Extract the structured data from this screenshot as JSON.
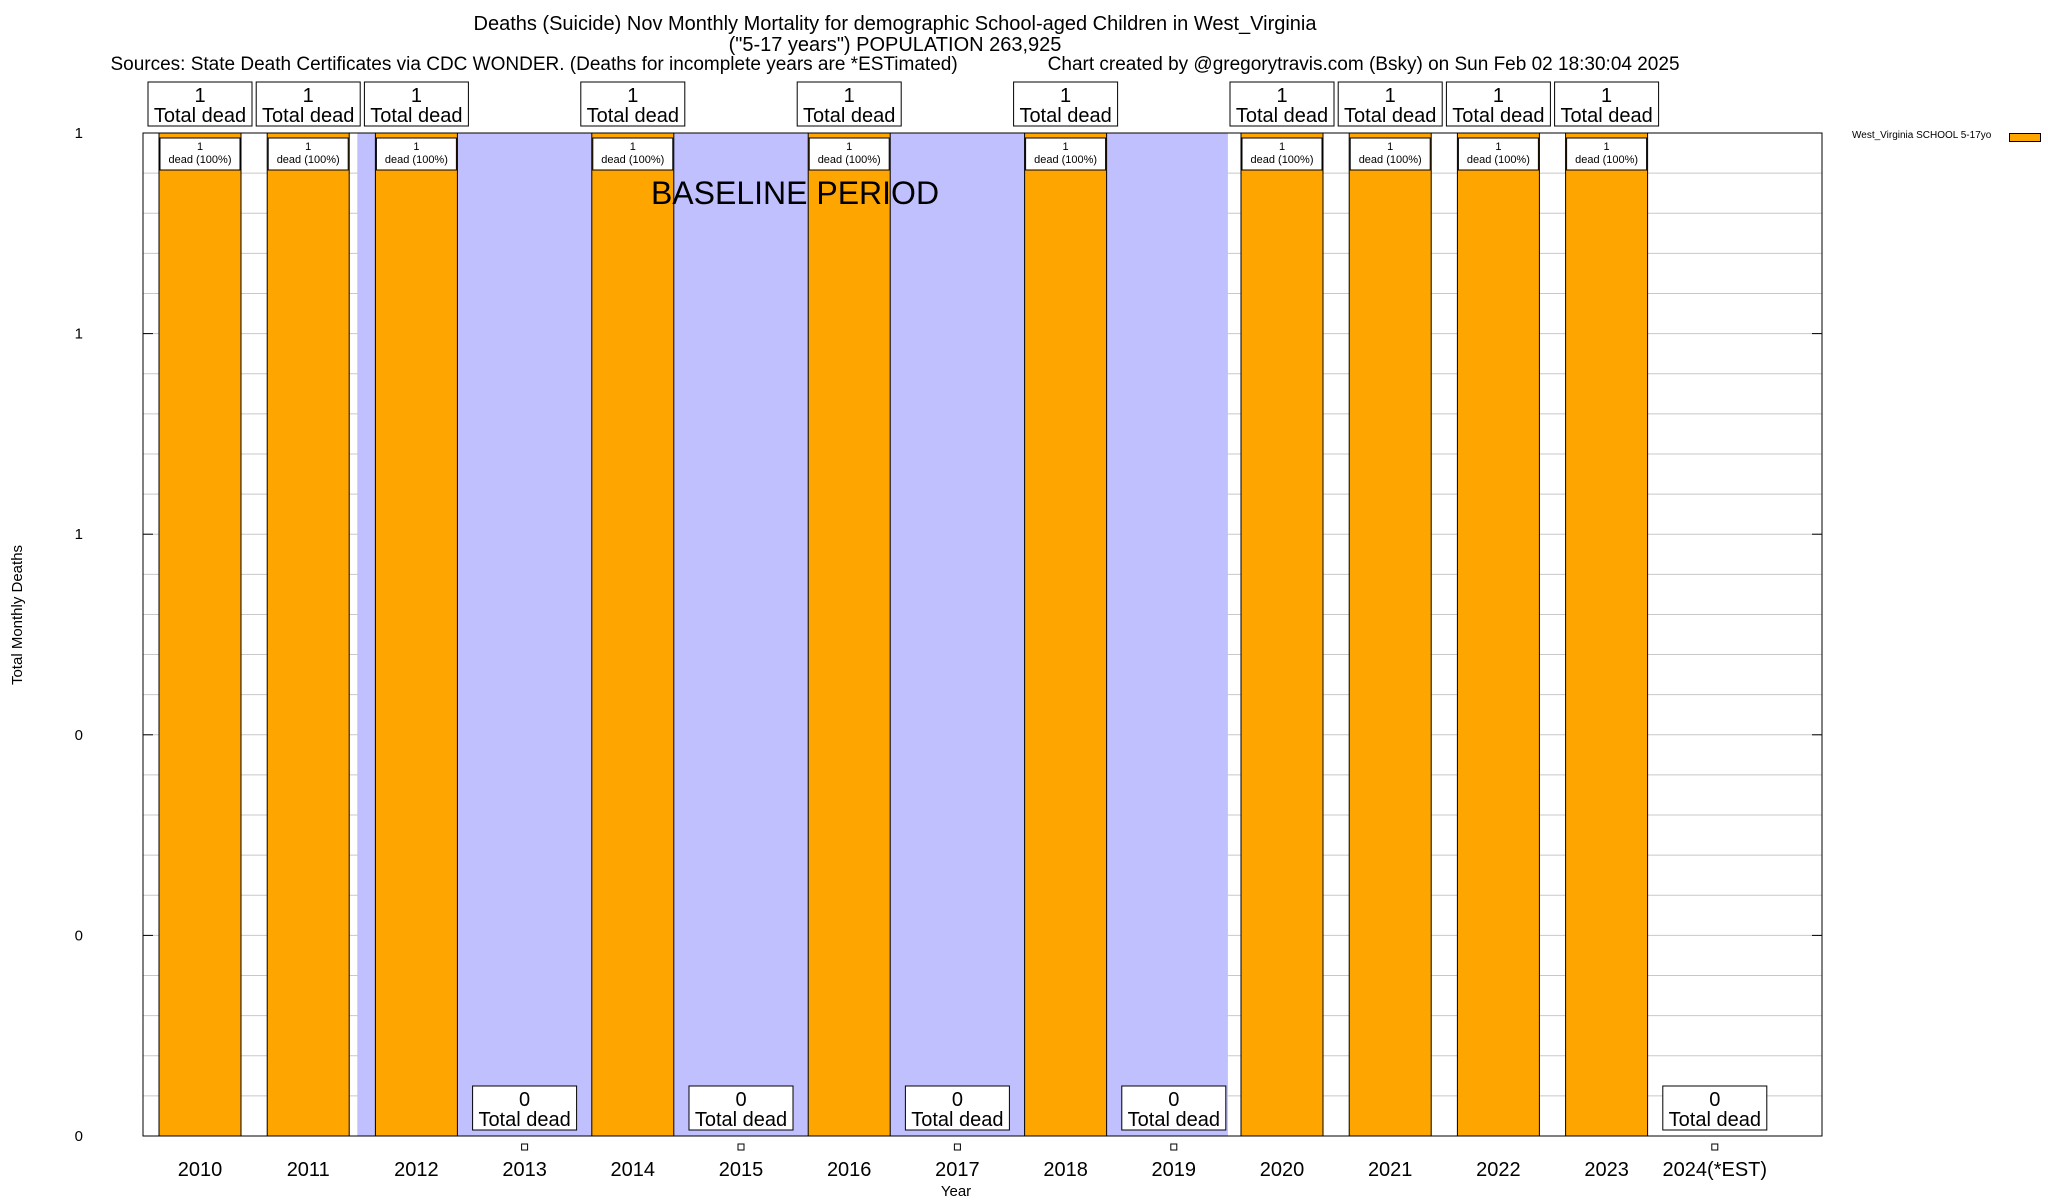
{
  "chart_data": {
    "type": "bar",
    "title": "Deaths (Suicide) Nov Monthly Mortality for demographic School-aged Children in West_Virginia",
    "subtitle": "(\"5-17 years\") POPULATION 263,925",
    "sources": "Sources: State Death Certificates via CDC WONDER. (Deaths for incomplete years are *ESTimated)",
    "credit": "Chart created by @gregorytravis.com (Bsky) on Sun Feb 02 18:30:04 2025",
    "xlabel": "Year",
    "ylabel": "Total Monthly Deaths",
    "annotation": "BASELINE PERIOD",
    "categories": [
      "2010",
      "2011",
      "2012",
      "2013",
      "2014",
      "2015",
      "2016",
      "2017",
      "2018",
      "2019",
      "2020",
      "2021",
      "2022",
      "2023",
      "2024(*EST)"
    ],
    "series": [
      {
        "name": "West_Virginia SCHOOL 5-17yo",
        "color": "#ffa500",
        "values": [
          1,
          1,
          1,
          0,
          1,
          0,
          1,
          0,
          1,
          0,
          1,
          1,
          1,
          1,
          0
        ]
      }
    ],
    "bar_labels": [
      "1\ndead (100%)",
      "1\ndead (100%)",
      "1\ndead (100%)",
      "",
      "1\ndead (100%)",
      "",
      "1\ndead (100%)",
      "",
      "1\ndead (100%)",
      "",
      "1\ndead (100%)",
      "1\ndead (100%)",
      "1\ndead (100%)",
      "1\ndead (100%)",
      ""
    ],
    "total_labels": [
      "1\nTotal dead",
      "1\nTotal dead",
      "1\nTotal dead",
      "0\nTotal dead",
      "1\nTotal dead",
      "0\nTotal dead",
      "1\nTotal dead",
      "0\nTotal dead",
      "1\nTotal dead",
      "0\nTotal dead",
      "1\nTotal dead",
      "1\nTotal dead",
      "1\nTotal dead",
      "1\nTotal dead",
      "0\nTotal dead"
    ],
    "baseline_period": [
      "2012",
      "2019"
    ],
    "baseline_color": "#c0c0ff",
    "ylim": [
      0,
      1
    ],
    "yticks": [
      0,
      0.2,
      0.4,
      0.6,
      0.8,
      1
    ],
    "ytick_labels": [
      "0",
      "0",
      "0",
      "1",
      "1",
      "1"
    ],
    "grid": true,
    "legend_position": "top-right"
  }
}
